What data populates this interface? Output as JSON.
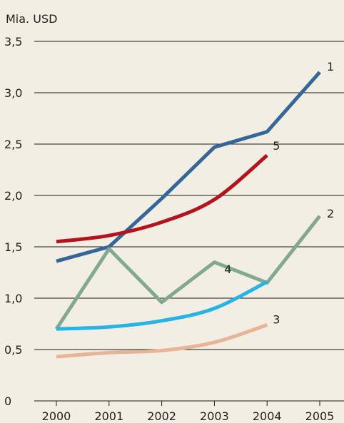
{
  "chart_data": {
    "type": "line",
    "ylabel": "Mia. USD",
    "ylim": [
      0,
      3.5
    ],
    "grid": true,
    "y_tick_labels": [
      "0",
      "0,5",
      "1,0",
      "1,5",
      "2,0",
      "2,5",
      "3,0",
      "3,5"
    ],
    "y_tick_values": [
      0,
      0.5,
      1.0,
      1.5,
      2.0,
      2.5,
      3.0,
      3.5
    ],
    "categories": [
      "2000",
      "2001",
      "2002",
      "2003",
      "2004",
      "2005"
    ],
    "series": [
      {
        "name": "1",
        "color": "#336699",
        "curve": false,
        "x": [
          "2000",
          "2001",
          "2002",
          "2003",
          "2004",
          "2005"
        ],
        "values": [
          1.36,
          1.5,
          1.97,
          2.47,
          2.62,
          3.2
        ]
      },
      {
        "name": "2",
        "color": "#82a892",
        "curve": false,
        "x": [
          "2000",
          "2001",
          "2002",
          "2003",
          "2004",
          "2005"
        ],
        "values": [
          0.7,
          1.48,
          0.96,
          1.35,
          1.15,
          1.8
        ]
      },
      {
        "name": "3",
        "color": "#e7b497",
        "curve": true,
        "x": [
          "2000",
          "2001",
          "2002",
          "2003",
          "2004"
        ],
        "values": [
          0.43,
          0.47,
          0.49,
          0.57,
          0.74
        ]
      },
      {
        "name": "4",
        "color": "#27b3e6",
        "curve": true,
        "x": [
          "2000",
          "2001",
          "2002",
          "2003",
          "2004"
        ],
        "values": [
          0.7,
          0.72,
          0.78,
          0.9,
          1.16
        ]
      },
      {
        "name": "5",
        "color": "#b5121b",
        "curve": true,
        "x": [
          "2000",
          "2001",
          "2002",
          "2003",
          "2004"
        ],
        "values": [
          1.55,
          1.61,
          1.74,
          1.96,
          2.39
        ]
      }
    ]
  }
}
